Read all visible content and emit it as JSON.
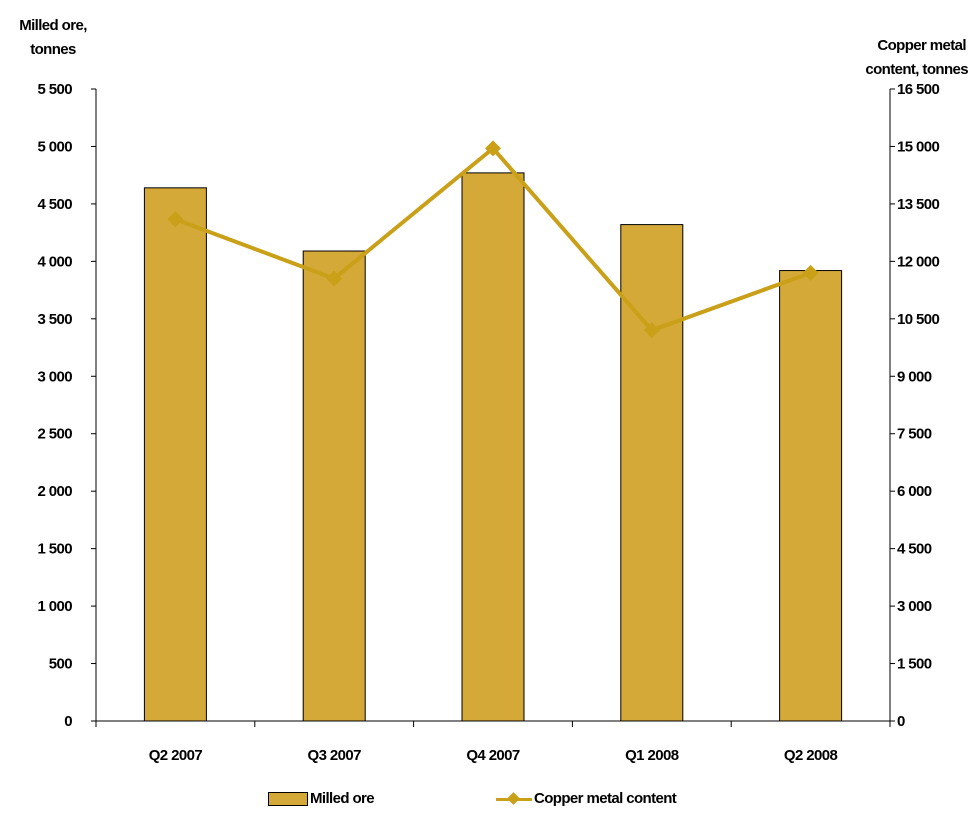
{
  "chart_data": {
    "type": "bar",
    "categories": [
      "Q2 2007",
      "Q3 2007",
      "Q4 2007",
      "Q1 2008",
      "Q2 2008"
    ],
    "series": [
      {
        "name": "Milled ore",
        "type": "bar",
        "axis": "left",
        "values": [
          4640,
          4090,
          4770,
          4320,
          3920
        ]
      },
      {
        "name": "Copper metal content",
        "type": "line",
        "axis": "right",
        "values": [
          13100,
          11550,
          14950,
          10200,
          11700
        ]
      }
    ],
    "ylabel_left": [
      "Milled ore,",
      "tonnes"
    ],
    "ylabel_right": [
      "Copper metal",
      "content, tonnes"
    ],
    "ylim_left": [
      0,
      5500
    ],
    "ylim_right": [
      0,
      16500
    ],
    "yticks_left": [
      "0",
      "500",
      "1 000",
      "1 500",
      "2 000",
      "2 500",
      "3 000",
      "3 500",
      "4 000",
      "4 500",
      "5 000",
      "5 500"
    ],
    "yticks_right": [
      "0",
      "1 500",
      "3 000",
      "4 500",
      "6 000",
      "7 500",
      "9 000",
      "10 500",
      "12 000",
      "13 500",
      "15 000",
      "16 500"
    ],
    "grid": false,
    "legend_position": "bottom",
    "colors": {
      "bar": "#d4a937",
      "line": "#c9a017"
    }
  }
}
